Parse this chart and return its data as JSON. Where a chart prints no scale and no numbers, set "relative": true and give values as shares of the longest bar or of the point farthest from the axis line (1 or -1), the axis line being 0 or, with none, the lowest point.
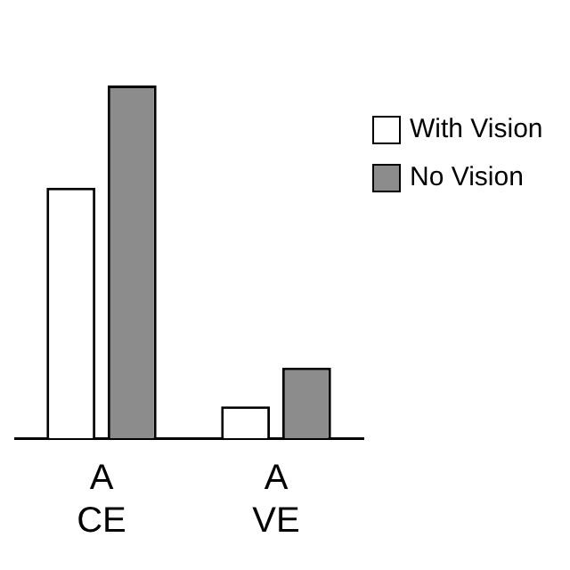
{
  "chart_data": {
    "type": "bar",
    "relative": true,
    "categories": [
      "A CE",
      "A VE"
    ],
    "series": [
      {
        "name": "With Vision",
        "color": "#ffffff",
        "values": [
          0.71,
          0.09
        ]
      },
      {
        "name": "No Vision",
        "color": "#8c8c8c",
        "values": [
          1,
          0.2
        ]
      }
    ],
    "grid": false,
    "legend": "right"
  }
}
